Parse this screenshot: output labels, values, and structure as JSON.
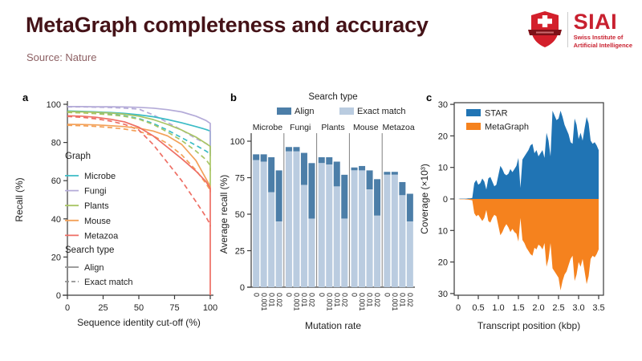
{
  "header": {
    "title": "MetaGraph completeness and accuracy",
    "source": "Source: Nature",
    "title_color": "#451318",
    "source_color": "#8d6063"
  },
  "logo": {
    "name": "SIAI",
    "subtitle_line1": "Swiss Institute of",
    "subtitle_line2": "Artificial Intelligence",
    "accent": "#c8202f",
    "shield_red": "#d31f2b",
    "banner_dark": "#7e1118"
  },
  "chart_data": [
    {
      "panel": "a",
      "type": "line",
      "xlabel": "Sequence identity cut-off (%)",
      "ylabel": "Recall (%)",
      "xlim": [
        0,
        100
      ],
      "ylim": [
        0,
        100
      ],
      "xticks": [
        0,
        25,
        50,
        75,
        100
      ],
      "yticks": [
        0,
        20,
        40,
        60,
        80,
        100
      ],
      "legend_graph_label": "Graph",
      "legend_search_label": "Search type",
      "legend_align_label": "Align",
      "legend_exact_label": "Exact match",
      "legend_gray": "#909090",
      "x": [
        0,
        10,
        20,
        30,
        40,
        50,
        60,
        70,
        80,
        90,
        97,
        100,
        100
      ],
      "series": [
        {
          "name": "Microbe",
          "search": "Align",
          "style": "solid",
          "color": "#3bbcc6",
          "values": [
            96.5,
            96.3,
            96.0,
            95.7,
            95.2,
            94.5,
            93.5,
            92.0,
            90.3,
            88.3,
            86.8,
            86.0,
            74.0
          ]
        },
        {
          "name": "Microbe",
          "search": "Exact match",
          "style": "dashed",
          "color": "#3bbcc6",
          "values": [
            96.0,
            95.8,
            95.4,
            94.8,
            94.0,
            92.5,
            90.0,
            86.5,
            82.5,
            78.5,
            75.5,
            74.0,
            73.0
          ]
        },
        {
          "name": "Fungi",
          "search": "Align",
          "style": "solid",
          "color": "#b4abd8",
          "values": [
            98.8,
            98.8,
            98.7,
            98.7,
            98.6,
            98.4,
            98.0,
            97.2,
            96.0,
            93.8,
            91.5,
            90.0,
            73.0
          ]
        },
        {
          "name": "Fungi",
          "search": "Exact match",
          "style": "dashed",
          "color": "#b4abd8",
          "values": [
            98.6,
            98.6,
            98.5,
            98.3,
            98.0,
            97.5,
            94.5,
            90.5,
            86.5,
            82.0,
            79.5,
            78.0,
            75.0
          ]
        },
        {
          "name": "Plants",
          "search": "Align",
          "style": "solid",
          "color": "#a9c565",
          "values": [
            96.2,
            96.0,
            95.8,
            95.4,
            94.8,
            93.8,
            92.0,
            89.5,
            86.5,
            82.8,
            79.5,
            78.0,
            57.0
          ]
        },
        {
          "name": "Plants",
          "search": "Exact match",
          "style": "dashed",
          "color": "#a9c565",
          "values": [
            95.7,
            95.5,
            95.1,
            94.5,
            93.7,
            92.2,
            89.5,
            85.5,
            81.0,
            75.5,
            71.0,
            68.0,
            65.0
          ]
        },
        {
          "name": "Mouse",
          "search": "Align",
          "style": "solid",
          "color": "#f3a159",
          "values": [
            89.5,
            89.4,
            89.2,
            88.8,
            88.3,
            87.5,
            86.0,
            83.5,
            79.0,
            70.5,
            61.0,
            57.0,
            54.0
          ]
        },
        {
          "name": "Mouse",
          "search": "Exact match",
          "style": "dashed",
          "color": "#f3a159",
          "values": [
            89.0,
            88.8,
            88.4,
            87.8,
            87.0,
            85.8,
            83.5,
            79.5,
            73.5,
            65.5,
            58.5,
            55.0,
            54.0
          ]
        },
        {
          "name": "Metazoa",
          "search": "Align",
          "style": "solid",
          "color": "#ee6e64",
          "values": [
            94.0,
            93.8,
            93.2,
            92.2,
            90.8,
            88.0,
            83.5,
            77.5,
            71.5,
            65.0,
            59.5,
            56.0,
            0.0
          ]
        },
        {
          "name": "Metazoa",
          "search": "Exact match",
          "style": "dashed",
          "color": "#ee6e64",
          "values": [
            93.6,
            93.2,
            92.4,
            91.2,
            89.5,
            86.5,
            79.0,
            69.5,
            60.0,
            49.0,
            41.0,
            37.0,
            36.0
          ]
        }
      ],
      "legend_names": [
        "Microbe",
        "Fungi",
        "Plants",
        "Mouse",
        "Metazoa"
      ]
    },
    {
      "panel": "b",
      "type": "grouped-bar-overlay",
      "legend_title": "Search type",
      "legend_align_label": "Align",
      "legend_exact_label": "Exact match",
      "colors": {
        "align": "#4c7ea8",
        "exact": "#bacce0"
      },
      "groups": [
        "Microbe",
        "Fungi",
        "Plants",
        "Mouse",
        "Metazoa"
      ],
      "mutation_rates": [
        "0",
        "0.001",
        "0.01",
        "0.02"
      ],
      "ylabel": "Average recall (%)",
      "xlabel": "Mutation rate",
      "ylim": [
        0,
        100
      ],
      "yticks": [
        0,
        25,
        50,
        75,
        100
      ],
      "align_totals": [
        [
          91,
          91,
          89,
          80
        ],
        [
          96,
          96,
          92,
          85
        ],
        [
          89,
          89,
          86,
          77
        ],
        [
          82,
          83,
          80,
          74
        ],
        [
          79,
          79,
          72,
          64
        ]
      ],
      "exact_values": [
        [
          87,
          86,
          65,
          45
        ],
        [
          93,
          93,
          70,
          47
        ],
        [
          85,
          84,
          69,
          47
        ],
        [
          80,
          80,
          67,
          49
        ],
        [
          77,
          77,
          63,
          45
        ]
      ]
    },
    {
      "panel": "c",
      "type": "mirror-area",
      "legend": [
        "STAR",
        "MetaGraph"
      ],
      "colors": [
        "#2074b4",
        "#f5821e"
      ],
      "ylabel": "Coverage (×10³)",
      "xlabel": "Transcript position (kbp)",
      "yticks": [
        30,
        20,
        10,
        0,
        10,
        20,
        30
      ],
      "xtick_labels": [
        "0",
        "0.5",
        "1.0",
        "1.5",
        "2.0",
        "2.5",
        "3.0",
        "3.5"
      ],
      "x_start": 0,
      "x_step": 0.05,
      "star": [
        0,
        0.1,
        0.1,
        0.1,
        0.1,
        0.2,
        0.2,
        0.3,
        5,
        6,
        4.5,
        5,
        6.5,
        5.5,
        3,
        6.5,
        7,
        5.5,
        4,
        4.5,
        7.5,
        10.5,
        9.5,
        8,
        7.5,
        8,
        9.5,
        8.5,
        9.5,
        10.5,
        13,
        3.5,
        12.5,
        13.5,
        14.5,
        15.5,
        17,
        17.5,
        14.5,
        15.5,
        13.5,
        14.5,
        15.5,
        13,
        21,
        18.5,
        13.5,
        28,
        26.5,
        25,
        25.5,
        28,
        26,
        23.5,
        22,
        20.5,
        18,
        17.5,
        25.5,
        23.5,
        19,
        21,
        18.5,
        22.5,
        26,
        24,
        18.5,
        17.5,
        18,
        17,
        15.5
      ],
      "metagraph": [
        0,
        0.1,
        0.1,
        0.1,
        0.15,
        0.2,
        0.3,
        0.4,
        4.5,
        5.5,
        5,
        6,
        7,
        6,
        3.5,
        7,
        7.5,
        6,
        5,
        5.5,
        8.5,
        11.5,
        10.5,
        9,
        8,
        9,
        10.5,
        9.5,
        10.5,
        11,
        13.5,
        6,
        13,
        14,
        15.5,
        16.5,
        17.5,
        18,
        15.5,
        16,
        14.5,
        15,
        16,
        14,
        21.5,
        19,
        14,
        22,
        23,
        24,
        25,
        29,
        26,
        24,
        23,
        21,
        19,
        18,
        26,
        24,
        20,
        21.5,
        19,
        23,
        27,
        24.5,
        19,
        18,
        18.5,
        17.5,
        16
      ]
    }
  ]
}
